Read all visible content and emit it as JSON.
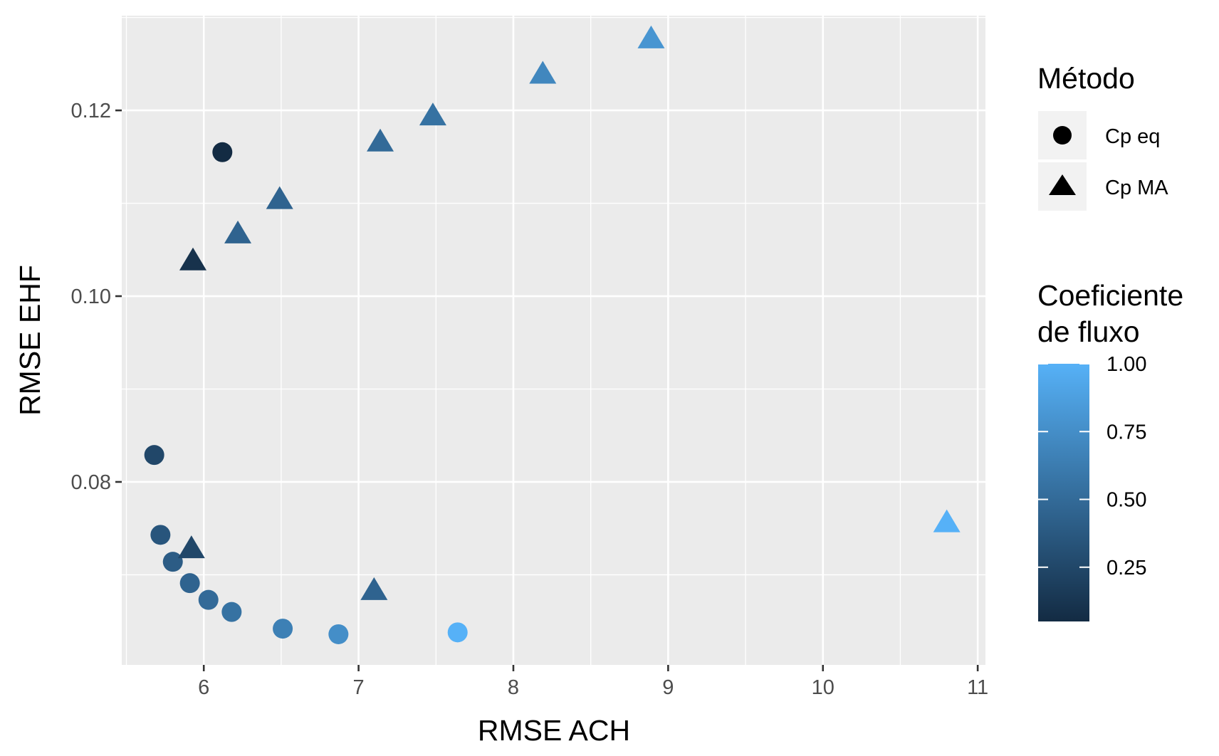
{
  "chart_data": {
    "type": "scatter",
    "xlabel": "RMSE ACH",
    "ylabel": "RMSE EHF",
    "xlim": [
      5.47,
      11.05
    ],
    "ylim": [
      0.0603,
      0.1302
    ],
    "xticks": [
      6,
      7,
      8,
      9,
      10,
      11
    ],
    "xtick_labels": [
      "6",
      "7",
      "8",
      "9",
      "10",
      "11"
    ],
    "yticks": [
      0.08,
      0.1,
      0.12
    ],
    "ytick_labels": [
      "0.08",
      "0.10",
      "0.12"
    ],
    "grid": true,
    "legend_position": "right",
    "shape_legend": {
      "title": "Método",
      "entries": [
        {
          "label": "Cp eq",
          "shape": "circle"
        },
        {
          "label": "Cp MA",
          "shape": "triangle"
        }
      ]
    },
    "color_legend": {
      "title_lines": [
        "Coeficiente",
        "de fluxo"
      ],
      "range": [
        0.05,
        1.0
      ],
      "ticks": [
        0.25,
        0.5,
        0.75,
        1.0
      ],
      "tick_labels": [
        "0.25",
        "0.50",
        "0.75",
        "1.00"
      ],
      "low_color": "#132B43",
      "high_color": "#56B1F7"
    },
    "series": [
      {
        "name": "Cp eq",
        "shape": "circle",
        "points": [
          {
            "x": 6.12,
            "y": 0.1155,
            "c": 0.05
          },
          {
            "x": 5.68,
            "y": 0.0829,
            "c": 0.25
          },
          {
            "x": 5.72,
            "y": 0.0743,
            "c": 0.35
          },
          {
            "x": 5.8,
            "y": 0.0714,
            "c": 0.4
          },
          {
            "x": 5.91,
            "y": 0.0691,
            "c": 0.45
          },
          {
            "x": 6.03,
            "y": 0.0673,
            "c": 0.5
          },
          {
            "x": 6.18,
            "y": 0.066,
            "c": 0.55
          },
          {
            "x": 6.51,
            "y": 0.0642,
            "c": 0.65
          },
          {
            "x": 6.87,
            "y": 0.0636,
            "c": 0.75
          },
          {
            "x": 7.64,
            "y": 0.0638,
            "c": 1.0
          }
        ]
      },
      {
        "name": "Cp MA",
        "shape": "triangle",
        "points": [
          {
            "x": 5.93,
            "y": 0.1036,
            "c": 0.1
          },
          {
            "x": 5.92,
            "y": 0.0726,
            "c": 0.25
          },
          {
            "x": 6.22,
            "y": 0.1065,
            "c": 0.45
          },
          {
            "x": 6.49,
            "y": 0.1102,
            "c": 0.45
          },
          {
            "x": 7.1,
            "y": 0.0681,
            "c": 0.45
          },
          {
            "x": 7.14,
            "y": 0.1164,
            "c": 0.5
          },
          {
            "x": 7.48,
            "y": 0.1192,
            "c": 0.55
          },
          {
            "x": 8.19,
            "y": 0.1237,
            "c": 0.7
          },
          {
            "x": 8.89,
            "y": 0.1275,
            "c": 0.8
          },
          {
            "x": 10.8,
            "y": 0.0754,
            "c": 1.0
          }
        ]
      }
    ]
  }
}
